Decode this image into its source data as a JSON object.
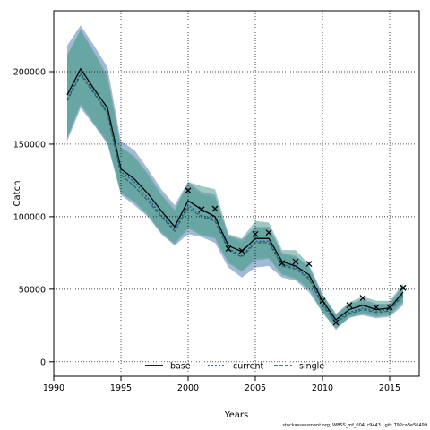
{
  "chart_data": {
    "type": "line",
    "xlabel": "Years",
    "ylabel": "Catch",
    "xlim": [
      1990,
      2017.2
    ],
    "ylim": [
      -10000,
      242000
    ],
    "xticks": [
      1990,
      1995,
      2000,
      2005,
      2010,
      2015
    ],
    "yticks": [
      0,
      50000,
      100000,
      150000,
      200000
    ],
    "grid": true,
    "legend_position": "bottom-center",
    "x": [
      1991,
      1992,
      1993,
      1994,
      1995,
      1996,
      1997,
      1998,
      1999,
      2000,
      2001,
      2002,
      2003,
      2004,
      2005,
      2006,
      2007,
      2008,
      2009,
      2010,
      2011,
      2012,
      2013,
      2014,
      2015,
      2016
    ],
    "series": [
      {
        "name": "base",
        "line_style": "solid",
        "color": "#000000",
        "band_color": "#5a7fb5",
        "values": [
          184000,
          202000,
          188000,
          175000,
          133000,
          126000,
          116000,
          104000,
          93000,
          111000,
          105000,
          100000,
          80000,
          76000,
          85000,
          85000,
          69000,
          66000,
          60000,
          42000,
          29000,
          36000,
          39000,
          36000,
          37000,
          48000
        ],
        "lower": [
          152000,
          175000,
          163000,
          150000,
          115000,
          108000,
          100000,
          88000,
          80000,
          88000,
          86000,
          82000,
          65000,
          58000,
          65000,
          66000,
          58000,
          56000,
          48000,
          34000,
          22000,
          31000,
          32000,
          30000,
          31000,
          39000
        ],
        "upper": [
          218000,
          232000,
          218000,
          203000,
          152000,
          146000,
          133000,
          119000,
          108000,
          124000,
          117000,
          115000,
          87000,
          84000,
          93000,
          93000,
          75000,
          73000,
          66000,
          46000,
          33000,
          40000,
          43000,
          40000,
          40000,
          53000
        ]
      },
      {
        "name": "current",
        "line_style": "dotted",
        "color": "#1f4e9e",
        "band_color": "#6fb0a8",
        "values": [
          181000,
          199000,
          186000,
          172000,
          131000,
          124000,
          113000,
          101000,
          91000,
          108000,
          101000,
          98000,
          78000,
          73000,
          83000,
          83000,
          67000,
          65000,
          58000,
          40000,
          28000,
          34000,
          37000,
          35000,
          36000,
          47000
        ],
        "lower": [
          155000,
          178000,
          165000,
          152000,
          117000,
          111000,
          102000,
          90000,
          82000,
          93000,
          88000,
          86000,
          69000,
          63000,
          71000,
          72000,
          61000,
          58000,
          51000,
          35000,
          24000,
          31000,
          34000,
          32000,
          33000,
          42000
        ],
        "upper": [
          212000,
          228000,
          214000,
          198000,
          148000,
          142000,
          130000,
          116000,
          105000,
          122000,
          115000,
          113000,
          86000,
          82000,
          92000,
          92000,
          74000,
          72000,
          64000,
          45000,
          32000,
          39000,
          41000,
          39000,
          39000,
          52000
        ]
      },
      {
        "name": "single",
        "line_style": "dashed",
        "color": "#2a6b62",
        "band_color": "#4f9a8f",
        "values": [
          180000,
          198000,
          185000,
          171000,
          129000,
          121000,
          111000,
          100000,
          90000,
          106000,
          100000,
          97000,
          77000,
          72000,
          82000,
          82000,
          66000,
          64000,
          57000,
          39000,
          27000,
          33000,
          36000,
          34000,
          35000,
          46000
        ],
        "lower": [
          154000,
          177000,
          164000,
          151000,
          116000,
          110000,
          101000,
          89000,
          81000,
          92000,
          87000,
          85000,
          68000,
          62000,
          70000,
          71000,
          60000,
          57000,
          50000,
          34000,
          23000,
          30000,
          33000,
          31000,
          32000,
          41000
        ],
        "upper": [
          211000,
          229000,
          213000,
          196000,
          148000,
          141000,
          129000,
          115000,
          104000,
          124000,
          121000,
          119000,
          88000,
          85000,
          97000,
          96000,
          77000,
          77000,
          67000,
          47000,
          33000,
          41000,
          45000,
          42000,
          42000,
          54000
        ]
      }
    ],
    "observed": {
      "marker": "x",
      "x": [
        2000,
        2001,
        2002,
        2003,
        2004,
        2005,
        2006,
        2007,
        2008,
        2009,
        2010,
        2011,
        2012,
        2013,
        2014,
        2015,
        2016
      ],
      "values": [
        118000,
        105000,
        105500,
        78000,
        76500,
        88000,
        89000,
        68000,
        69000,
        67500,
        42000,
        27000,
        39000,
        44000,
        37500,
        37500,
        51000
      ]
    }
  },
  "footer": "stockassessment.org, WBSS_mf_004, r9443 , git: 792ca3e56499"
}
